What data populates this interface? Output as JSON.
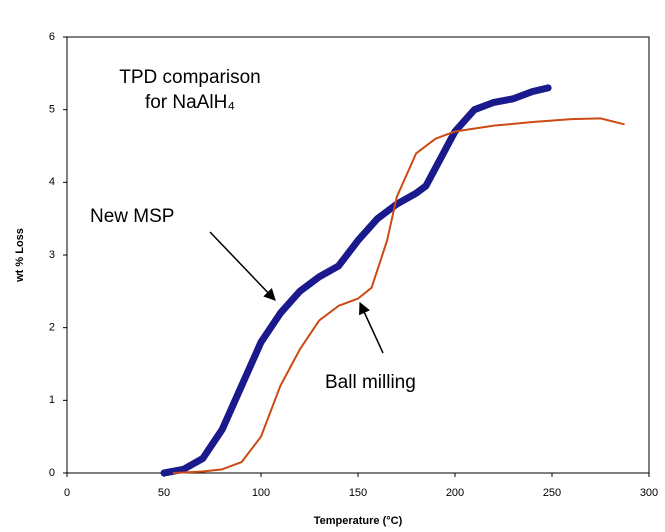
{
  "chart_data": {
    "type": "line",
    "title_lines": [
      "TPD comparison",
      "for NaAlH₄"
    ],
    "x_label": "Temperature (°C)",
    "y_label": "wt % Loss",
    "annotations": [
      "New MSP",
      "Ball milling"
    ],
    "xlim": [
      0,
      300
    ],
    "xticks": [
      0,
      50,
      100,
      150,
      200,
      250,
      300
    ],
    "ylim": [
      0,
      6
    ],
    "yticks": [
      0,
      1,
      2,
      3,
      4,
      5,
      6
    ],
    "grid": false,
    "series": [
      {
        "name": "New MSP",
        "color": "#1a1a8c",
        "width": 7,
        "x": [
          50,
          60,
          70,
          80,
          90,
          100,
          110,
          120,
          130,
          140,
          150,
          160,
          170,
          180,
          185,
          190,
          200,
          210,
          220,
          230,
          240,
          248
        ],
        "values": [
          0,
          0.05,
          0.2,
          0.6,
          1.2,
          1.8,
          2.2,
          2.5,
          2.7,
          2.85,
          3.2,
          3.5,
          3.7,
          3.85,
          3.95,
          4.2,
          4.7,
          5.0,
          5.1,
          5.15,
          5.25,
          5.3
        ]
      },
      {
        "name": "Ball milling",
        "color": "#cc4a14",
        "width": 2,
        "x": [
          55,
          70,
          80,
          90,
          100,
          110,
          120,
          130,
          140,
          150,
          157,
          165,
          170,
          180,
          190,
          200,
          220,
          240,
          260,
          275,
          287
        ],
        "values": [
          0,
          0.02,
          0.05,
          0.15,
          0.5,
          1.2,
          1.7,
          2.1,
          2.3,
          2.4,
          2.55,
          3.2,
          3.8,
          4.4,
          4.6,
          4.7,
          4.78,
          4.83,
          4.87,
          4.88,
          4.8
        ]
      }
    ]
  }
}
